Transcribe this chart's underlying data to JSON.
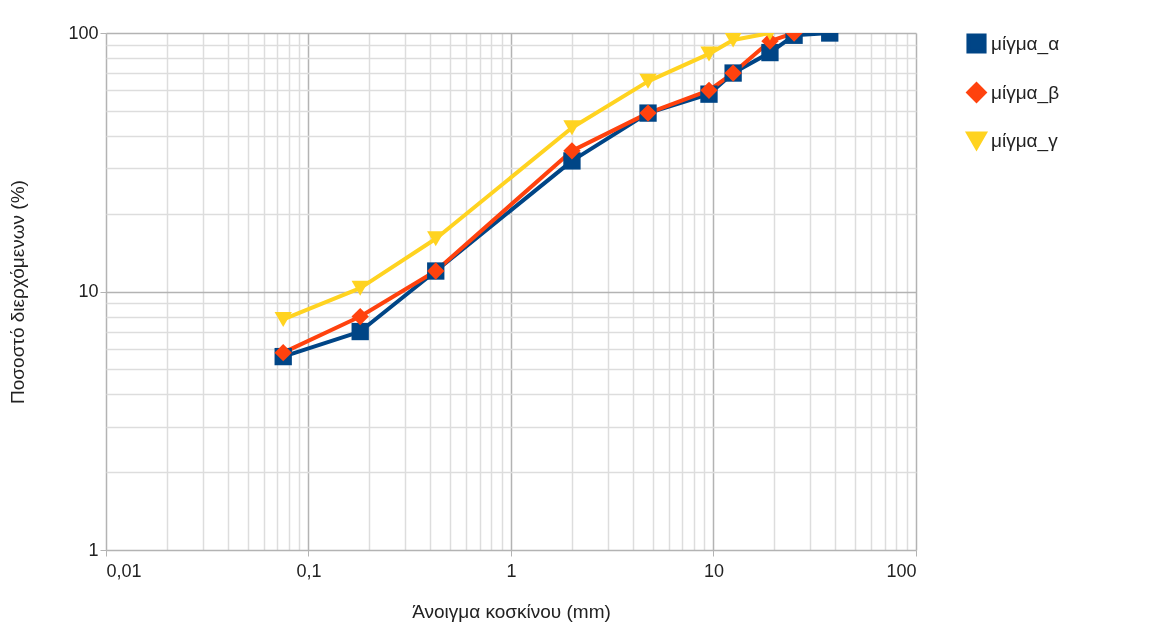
{
  "chart_data": {
    "type": "line",
    "xlabel": "Άνοιγμα κοσκίνου (mm)",
    "ylabel": "Ποσοστό διερχόμενων (%)",
    "log": "xy",
    "grid": true,
    "legend": "right",
    "line_style": "solid",
    "xlim": [
      0.01,
      100
    ],
    "ylim": [
      1,
      100
    ],
    "xticks": [
      {
        "value": 0.01,
        "label": "0,01"
      },
      {
        "value": 0.02,
        "label": null
      },
      {
        "value": 0.03,
        "label": null
      },
      {
        "value": 0.04,
        "label": null
      },
      {
        "value": 0.05,
        "label": null
      },
      {
        "value": 0.06,
        "label": null
      },
      {
        "value": 0.07,
        "label": null
      },
      {
        "value": 0.08,
        "label": null
      },
      {
        "value": 0.09,
        "label": null
      },
      {
        "value": 0.1,
        "label": "0,1"
      },
      {
        "value": 0.2,
        "label": null
      },
      {
        "value": 0.3,
        "label": null
      },
      {
        "value": 0.4,
        "label": null
      },
      {
        "value": 0.5,
        "label": null
      },
      {
        "value": 0.6,
        "label": null
      },
      {
        "value": 0.7,
        "label": null
      },
      {
        "value": 0.8,
        "label": null
      },
      {
        "value": 0.9,
        "label": null
      },
      1,
      {
        "value": 2,
        "label": null
      },
      {
        "value": 3,
        "label": null
      },
      {
        "value": 4,
        "label": null
      },
      {
        "value": 5,
        "label": null
      },
      {
        "value": 6,
        "label": null
      },
      {
        "value": 7,
        "label": null
      },
      {
        "value": 8,
        "label": null
      },
      {
        "value": 9,
        "label": null
      },
      10,
      {
        "value": 20,
        "label": null
      },
      {
        "value": 30,
        "label": null
      },
      {
        "value": 40,
        "label": null
      },
      {
        "value": 50,
        "label": null
      },
      {
        "value": 60,
        "label": null
      },
      {
        "value": 70,
        "label": null
      },
      {
        "value": 80,
        "label": null
      },
      {
        "value": 90,
        "label": null
      },
      100
    ],
    "yticks": [
      1,
      {
        "value": 2,
        "label": null
      },
      {
        "value": 3,
        "label": null
      },
      {
        "value": 4,
        "label": null
      },
      {
        "value": 5,
        "label": null
      },
      {
        "value": 6,
        "label": null
      },
      {
        "value": 7,
        "label": null
      },
      {
        "value": 8,
        "label": null
      },
      {
        "value": 9,
        "label": null
      },
      10,
      {
        "value": 20,
        "label": null
      },
      {
        "value": 30,
        "label": null
      },
      {
        "value": 40,
        "label": null
      },
      {
        "value": 50,
        "label": null
      },
      {
        "value": 60,
        "label": null
      },
      {
        "value": 70,
        "label": null
      },
      {
        "value": 80,
        "label": null
      },
      {
        "value": 90,
        "label": null
      },
      100
    ],
    "series": [
      {
        "name": "μίγμα_α",
        "color": "#004586",
        "marker": "square",
        "x": [
          0.075,
          0.18,
          0.425,
          2,
          4.75,
          9.5,
          12.5,
          19,
          25,
          37.5
        ],
        "values": [
          5.6,
          7.0,
          12,
          32,
          49,
          58,
          70,
          84,
          98,
          100
        ]
      },
      {
        "name": "μίγμα_β",
        "color": "#ff420e",
        "marker": "diamond",
        "x": [
          0.075,
          0.18,
          0.425,
          2,
          4.75,
          9.5,
          12.5,
          19,
          25
        ],
        "values": [
          5.8,
          8.0,
          12,
          35,
          49,
          60,
          70,
          93,
          100
        ]
      },
      {
        "name": "μίγμα_γ",
        "color": "#ffd320",
        "marker": "triangle",
        "x": [
          0.075,
          0.18,
          0.425,
          2,
          4.75,
          9.5,
          12.5,
          19
        ],
        "values": [
          7.8,
          10.3,
          16,
          43,
          65,
          83,
          94,
          100
        ]
      }
    ]
  }
}
